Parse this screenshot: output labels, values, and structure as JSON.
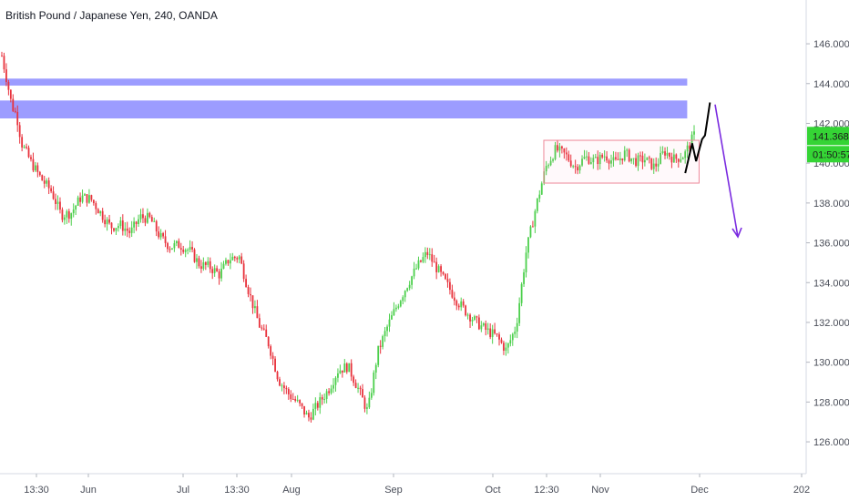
{
  "chart_data": {
    "type": "candlestick",
    "title": "British Pound / Japanese Yen, 240, OANDA",
    "y_ticks": [
      "126.000",
      "128.000",
      "130.000",
      "132.000",
      "134.000",
      "136.000",
      "138.000",
      "140.000",
      "142.000",
      "144.000",
      "146.000"
    ],
    "ylim": [
      124.4,
      148.2
    ],
    "x_ticks": [
      "13:30",
      "Jun",
      "Jul",
      "13:30",
      "Aug",
      "Sep",
      "Oct",
      "12:30",
      "Nov",
      "Dec",
      "202"
    ],
    "grid": false,
    "price_path": [
      [
        0,
        145.4
      ],
      [
        0.5,
        144.2
      ],
      [
        1,
        142.9
      ],
      [
        1.5,
        142.4
      ],
      [
        2,
        141.0
      ],
      [
        3,
        140.0
      ],
      [
        4,
        139.2
      ],
      [
        5,
        138.6
      ],
      [
        6,
        137.4
      ],
      [
        7,
        137.5
      ],
      [
        8,
        138.3
      ],
      [
        9,
        138.2
      ],
      [
        10,
        137.5
      ],
      [
        11,
        136.8
      ],
      [
        12,
        136.9
      ],
      [
        13,
        136.5
      ],
      [
        14,
        137.3
      ],
      [
        15,
        137.2
      ],
      [
        16,
        136.3
      ],
      [
        17,
        135.8
      ],
      [
        18,
        135.9
      ],
      [
        19,
        135.6
      ],
      [
        20,
        134.9
      ],
      [
        21,
        134.8
      ],
      [
        22,
        134.4
      ],
      [
        23,
        135.2
      ],
      [
        24,
        135.3
      ],
      [
        25,
        133.5
      ],
      [
        26,
        131.9
      ],
      [
        27,
        130.9
      ],
      [
        28,
        129.1
      ],
      [
        29,
        128.4
      ],
      [
        30,
        127.9
      ],
      [
        31,
        127.2
      ],
      [
        32,
        127.9
      ],
      [
        33,
        128.6
      ],
      [
        34,
        129.6
      ],
      [
        35,
        129.8
      ],
      [
        36,
        128.7
      ],
      [
        37,
        127.5
      ],
      [
        38,
        130.5
      ],
      [
        39,
        131.8
      ],
      [
        40,
        132.9
      ],
      [
        41,
        133.9
      ],
      [
        42,
        134.8
      ],
      [
        43,
        135.5
      ],
      [
        44,
        134.7
      ],
      [
        45,
        133.9
      ],
      [
        46,
        133.1
      ],
      [
        47,
        132.5
      ],
      [
        48,
        132.0
      ],
      [
        49,
        131.6
      ],
      [
        50,
        131.3
      ],
      [
        51,
        130.6
      ],
      [
        52,
        131.8
      ],
      [
        53,
        135.5
      ],
      [
        54,
        137.8
      ],
      [
        55,
        139.8
      ],
      [
        56,
        140.7
      ],
      [
        57,
        140.4
      ],
      [
        58,
        139.8
      ],
      [
        59,
        140.3
      ],
      [
        60,
        140.1
      ],
      [
        61,
        140.4
      ],
      [
        62,
        140.0
      ],
      [
        63,
        140.5
      ],
      [
        64,
        140.1
      ],
      [
        65,
        140.2
      ],
      [
        66,
        139.8
      ],
      [
        67,
        140.6
      ],
      [
        68,
        140.2
      ],
      [
        69,
        140.4
      ],
      [
        70,
        141.4
      ]
    ],
    "resistance_zones": [
      [
        143.9,
        144.25
      ],
      [
        142.25,
        143.15
      ]
    ],
    "consolidation_box": [
      139.0,
      141.15
    ],
    "projection_up": [
      [
        139.5,
        141.0
      ],
      [
        141.4,
        143.05
      ]
    ],
    "projection_down": [
      142.95,
      136.3
    ],
    "current_price": "141.368",
    "countdown": "01:50:57",
    "colors": {
      "up": "#26a69a",
      "down": "#ef5350",
      "bullish": "#4ccf4c",
      "bearish": "#e8323c",
      "zone": "#7b7bff",
      "box": "#ee8899",
      "arrow": "#7a2be0",
      "price_tag": "#35d435"
    }
  }
}
